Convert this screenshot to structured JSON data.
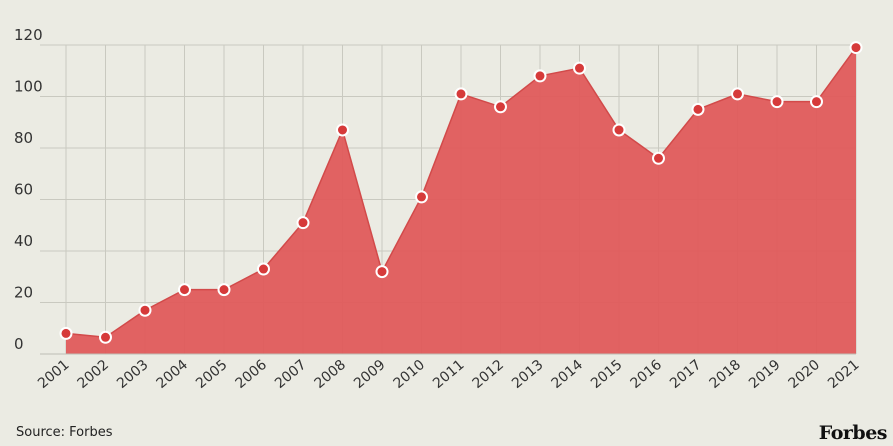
{
  "chart_data": {
    "type": "area",
    "title": "",
    "xlabel": "",
    "ylabel": "",
    "x": [
      "2001",
      "2002",
      "2003",
      "2004",
      "2005",
      "2006",
      "2007",
      "2008",
      "2009",
      "2010",
      "2011",
      "2012",
      "2013",
      "2014",
      "2015",
      "2016",
      "2017",
      "2018",
      "2019",
      "2020",
      "2021"
    ],
    "values": [
      8,
      6.5,
      17,
      25,
      25,
      33,
      51,
      87,
      32,
      61,
      101,
      96,
      108,
      111,
      87,
      76,
      95,
      101,
      98,
      98,
      119
    ],
    "ylim": [
      0,
      120
    ],
    "yticks": [
      "0",
      "20",
      "40",
      "60",
      "80",
      "100",
      "120"
    ],
    "grid": true,
    "fill_color": "#e05b5b",
    "line_color": "#d24a4a",
    "marker_color": "#d63a3a",
    "marker_edge": "#ffffff",
    "background": "#ebebe3"
  },
  "footer": {
    "source": "Source: Forbes",
    "brand": "Forbes"
  }
}
